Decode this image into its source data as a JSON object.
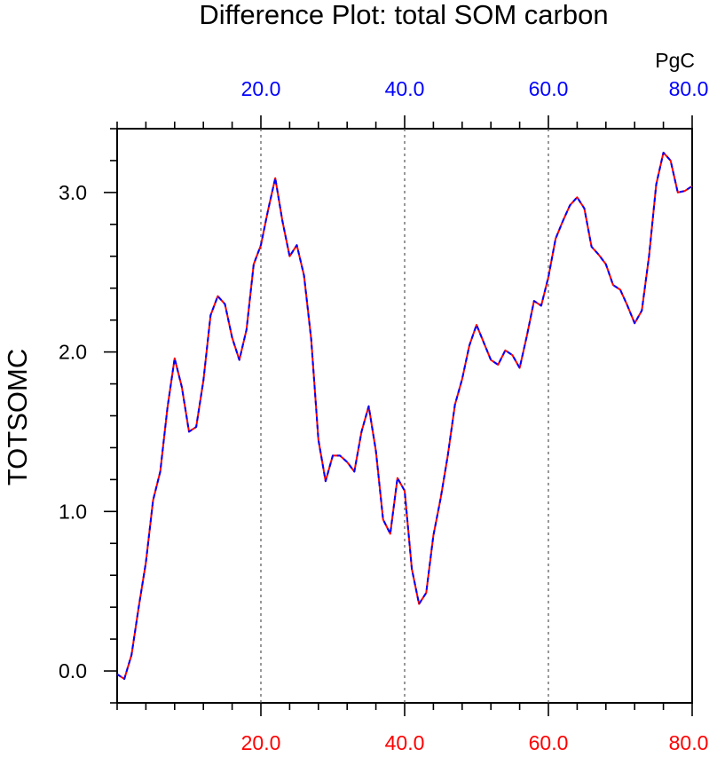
{
  "chart_data": {
    "type": "line",
    "title": "Difference Plot: total SOM carbon",
    "units": "PgC",
    "ylabel": "TOTSOMC",
    "xlabel": "",
    "xlim": [
      0,
      80
    ],
    "ylim": [
      -0.2,
      3.4
    ],
    "grid": "vertical dashed at x tick positions",
    "colors": {
      "line_primary": "#ff0000",
      "line_overlay": "#0000ff",
      "top_tick_labels": "#0000ff",
      "bottom_tick_labels": "#ff0000",
      "left_tick_labels": "#000000"
    },
    "x_ticks": [
      20,
      40,
      60,
      80
    ],
    "x_tick_labels_top": [
      "20.0",
      "40.0",
      "60.0",
      "80.0"
    ],
    "x_tick_labels_bottom": [
      "20.0",
      "40.0",
      "60.0",
      "80.0"
    ],
    "y_ticks": [
      0,
      1,
      2,
      3
    ],
    "y_tick_labels": [
      "0.0",
      "1.0",
      "2.0",
      "3.0"
    ],
    "series": [
      {
        "style": "red and blue dashed overlay",
        "x": [
          0,
          1,
          2,
          3,
          4,
          5,
          6,
          7,
          8,
          9,
          10,
          11,
          12,
          13,
          14,
          15,
          16,
          17,
          18,
          19,
          20,
          21,
          22,
          23,
          24,
          25,
          26,
          27,
          28,
          29,
          30,
          31,
          32,
          33,
          34,
          35,
          36,
          37,
          38,
          39,
          40,
          41,
          42,
          43,
          44,
          45,
          46,
          47,
          48,
          49,
          50,
          51,
          52,
          53,
          54,
          55,
          56,
          57,
          58,
          59,
          60,
          61,
          62,
          63,
          64,
          65,
          66,
          67,
          68,
          69,
          70,
          71,
          72,
          73,
          74,
          75,
          76,
          77,
          78,
          79,
          80
        ],
        "y": [
          -0.02,
          -0.05,
          0.1,
          0.4,
          0.68,
          1.07,
          1.25,
          1.65,
          1.96,
          1.78,
          1.5,
          1.53,
          1.82,
          2.23,
          2.35,
          2.3,
          2.09,
          1.95,
          2.14,
          2.55,
          2.67,
          2.89,
          3.09,
          2.82,
          2.6,
          2.67,
          2.48,
          2.08,
          1.45,
          1.19,
          1.35,
          1.35,
          1.31,
          1.25,
          1.5,
          1.66,
          1.38,
          0.95,
          0.86,
          1.21,
          1.13,
          0.64,
          0.42,
          0.49,
          0.85,
          1.08,
          1.35,
          1.67,
          1.83,
          2.04,
          2.17,
          2.06,
          1.95,
          1.92,
          2.01,
          1.98,
          1.9,
          2.1,
          2.32,
          2.29,
          2.47,
          2.71,
          2.82,
          2.92,
          2.97,
          2.9,
          2.66,
          2.61,
          2.55,
          2.42,
          2.39,
          2.29,
          2.18,
          2.26,
          2.6,
          3.05,
          3.25,
          3.2,
          3.0,
          3.01,
          3.04
        ]
      }
    ]
  }
}
